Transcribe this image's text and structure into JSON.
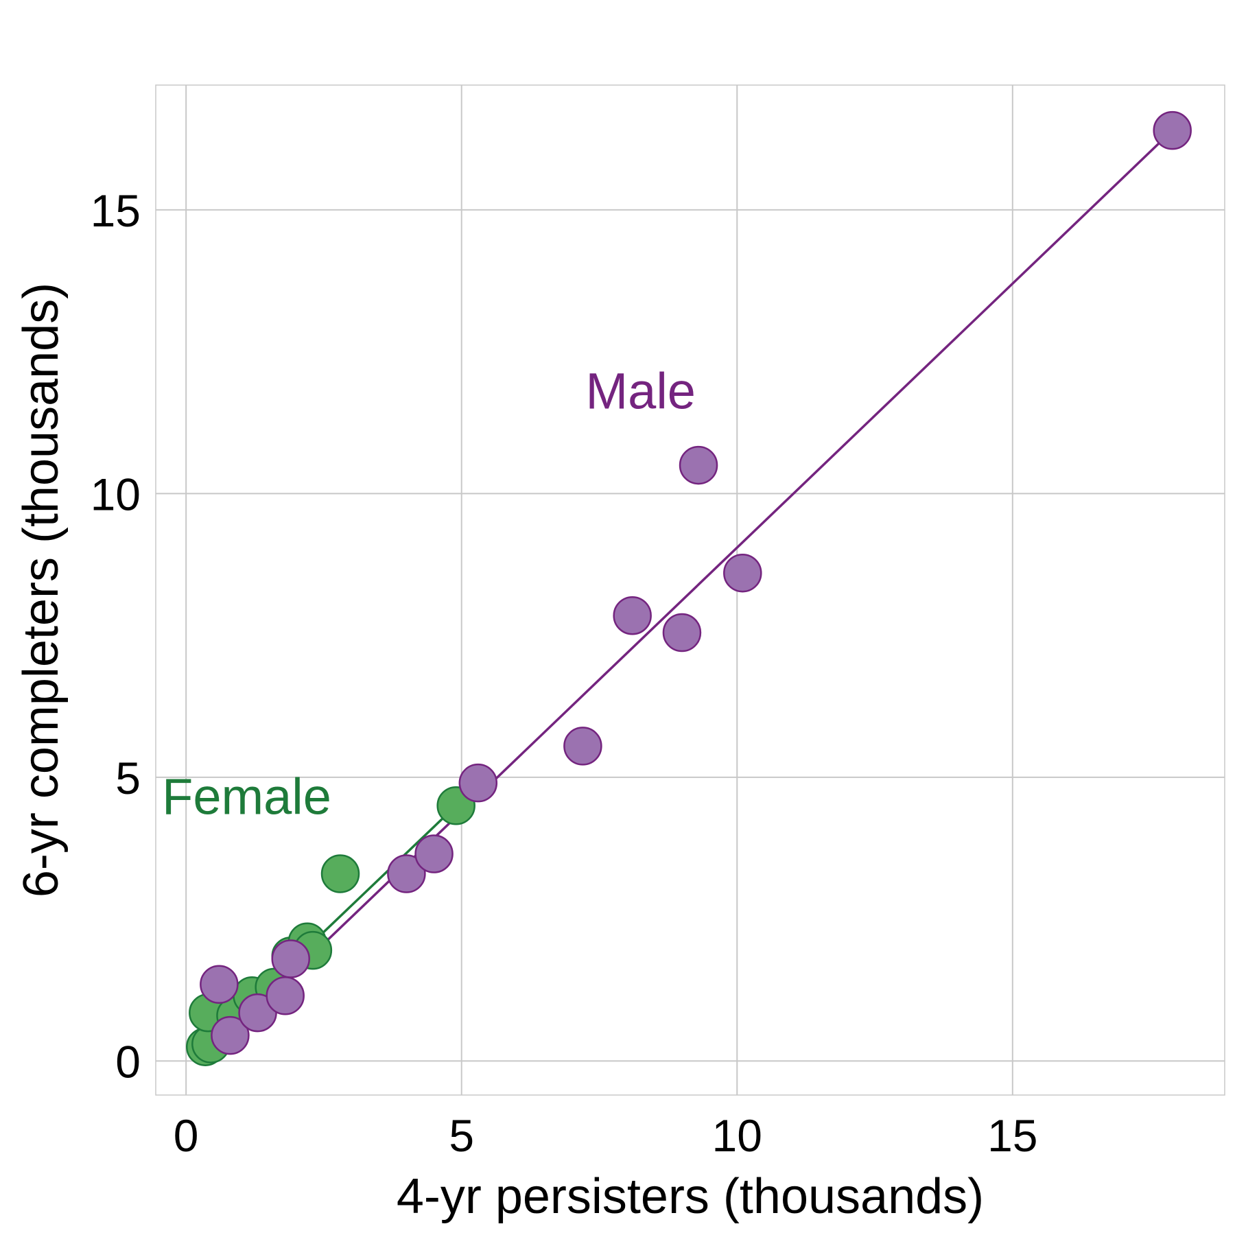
{
  "chart_data": {
    "type": "scatter",
    "title": "",
    "xlabel": "4-yr persisters (thousands)",
    "ylabel": "6-yr completers (thousands)",
    "xlim": [
      -0.55,
      18.85
    ],
    "ylim": [
      -0.6,
      17.2
    ],
    "xticks": [
      0,
      5,
      10,
      15
    ],
    "yticks": [
      0,
      5,
      10,
      15
    ],
    "grid": true,
    "series": [
      {
        "name": "Female",
        "color": "#1e7b3a",
        "fill": "#57ad5c",
        "points": [
          {
            "x": 0.35,
            "y": 0.25
          },
          {
            "x": 0.45,
            "y": 0.3
          },
          {
            "x": 0.4,
            "y": 0.85
          },
          {
            "x": 0.9,
            "y": 0.8
          },
          {
            "x": 1.2,
            "y": 1.15
          },
          {
            "x": 1.6,
            "y": 1.3
          },
          {
            "x": 1.9,
            "y": 1.85
          },
          {
            "x": 2.2,
            "y": 2.1
          },
          {
            "x": 2.3,
            "y": 1.95
          },
          {
            "x": 2.8,
            "y": 3.3
          },
          {
            "x": 4.9,
            "y": 4.5
          }
        ],
        "fit": {
          "x": [
            0.35,
            4.9
          ],
          "y": [
            0.28,
            4.5
          ]
        }
      },
      {
        "name": "Male",
        "color": "#74247f",
        "fill": "#9b72b0",
        "points": [
          {
            "x": 0.6,
            "y": 1.35
          },
          {
            "x": 0.8,
            "y": 0.45
          },
          {
            "x": 1.3,
            "y": 0.85
          },
          {
            "x": 1.8,
            "y": 1.15
          },
          {
            "x": 1.9,
            "y": 1.8
          },
          {
            "x": 4.0,
            "y": 3.3
          },
          {
            "x": 4.5,
            "y": 3.65
          },
          {
            "x": 5.3,
            "y": 4.9
          },
          {
            "x": 7.2,
            "y": 5.55
          },
          {
            "x": 8.1,
            "y": 7.85
          },
          {
            "x": 9.0,
            "y": 7.55
          },
          {
            "x": 9.3,
            "y": 10.5
          },
          {
            "x": 10.1,
            "y": 8.6
          },
          {
            "x": 17.9,
            "y": 16.4
          }
        ],
        "fit": {
          "x": [
            0.6,
            17.9
          ],
          "y": [
            0.3,
            16.4
          ]
        }
      }
    ],
    "annotations": [
      {
        "text": "Female",
        "series": 0,
        "x": 1.1,
        "y": 4.35
      },
      {
        "text": "Male",
        "series": 1,
        "x": 8.25,
        "y": 11.5
      }
    ]
  }
}
